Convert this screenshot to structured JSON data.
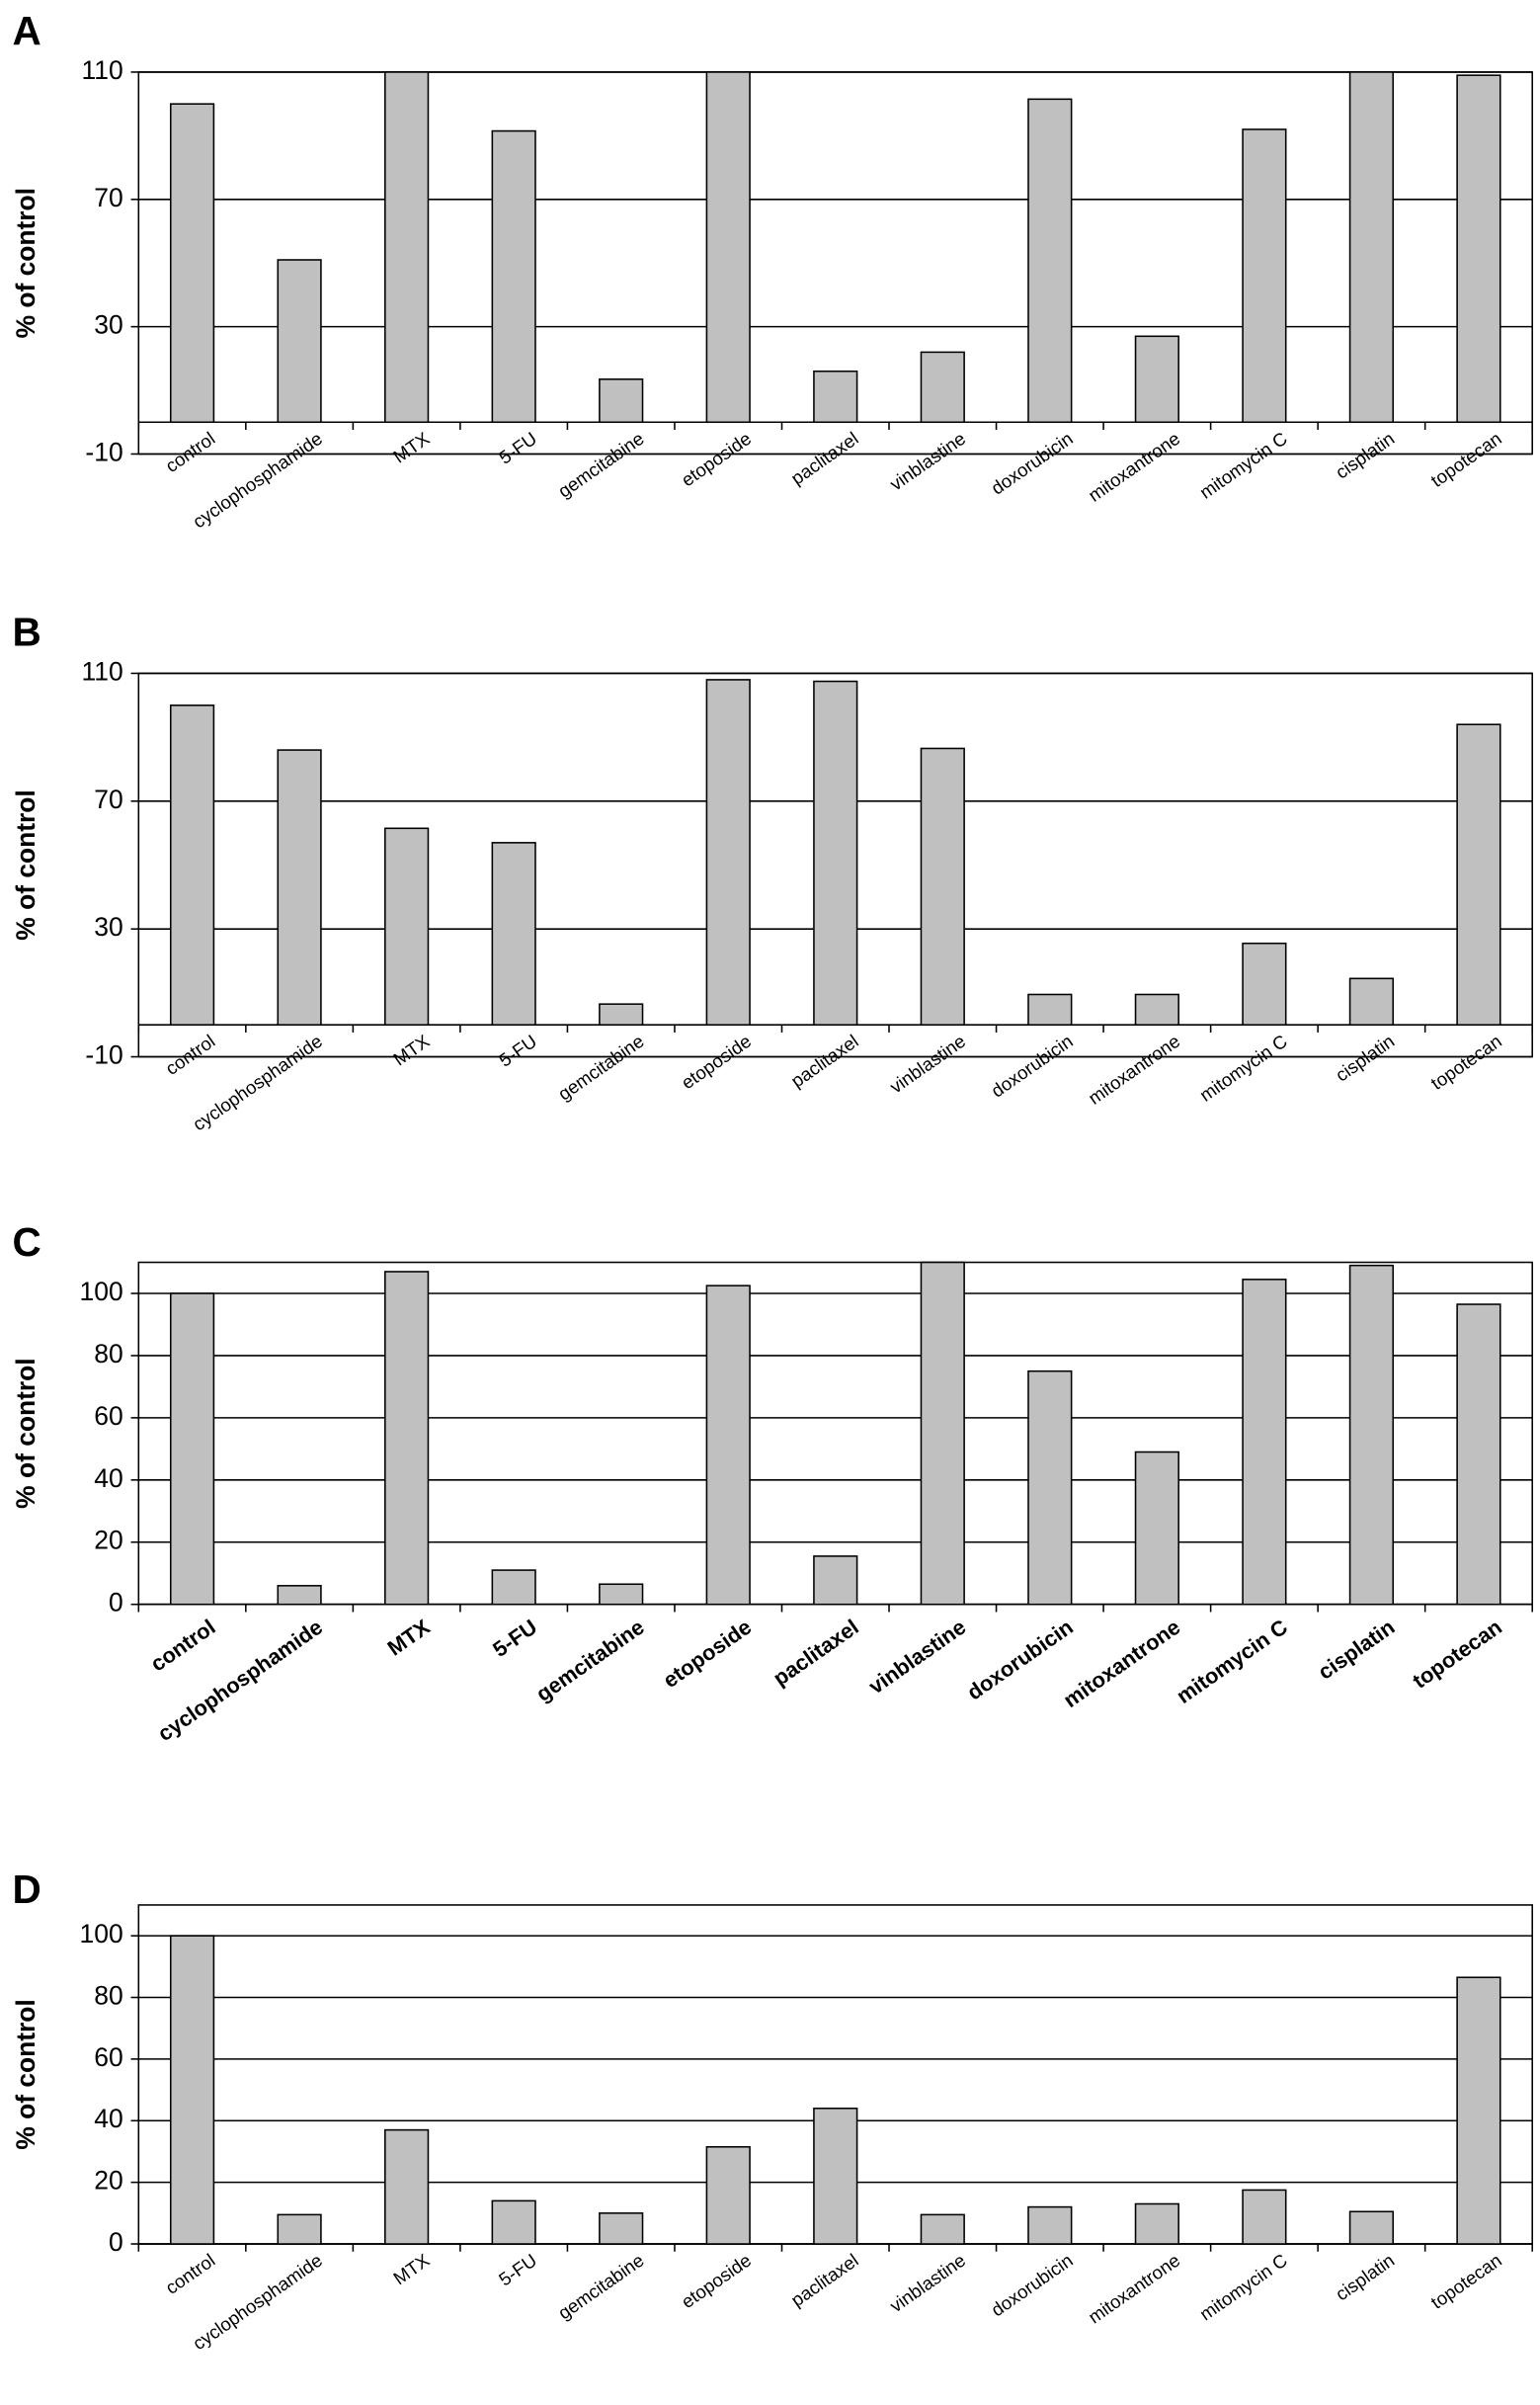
{
  "chart_data": [
    {
      "type": "bar",
      "label": "A",
      "y_label": "% of control",
      "categories": [
        "control",
        "cyclophosphamide",
        "MTX",
        "5-FU",
        "gemcitabine",
        "etoposide",
        "paclitaxel",
        "vinblastine",
        "doxorubicin",
        "mitoxantrone",
        "mitomycin C",
        "cisplatin",
        "topotecan"
      ],
      "values": [
        100,
        51,
        110,
        91.5,
        13.5,
        110,
        16,
        22,
        101.5,
        27,
        92,
        110,
        109
      ],
      "color": "#c0c0c0",
      "ylim": [
        -10,
        110
      ],
      "yticks": [
        -10,
        30,
        70,
        110
      ],
      "grid": true
    },
    {
      "type": "bar",
      "label": "B",
      "y_label": "% of control",
      "categories": [
        "control",
        "cyclophosphamide",
        "MTX",
        "5-FU",
        "gemcitabine",
        "etoposide",
        "paclitaxel",
        "vinblastine",
        "doxorubicin",
        "mitoxantrone",
        "mitomycin C",
        "cisplatin",
        "topotecan"
      ],
      "values": [
        100,
        86,
        61.5,
        57,
        6.5,
        108,
        107.5,
        86.5,
        9.5,
        9.5,
        25.5,
        14.5,
        94
      ],
      "color": "#c0c0c0",
      "ylim": [
        -10,
        110
      ],
      "yticks": [
        -10,
        30,
        70,
        110
      ],
      "grid": true
    },
    {
      "type": "bar",
      "label": "C",
      "y_label": "% of control",
      "categories": [
        "control",
        "cyclophosphamide",
        "MTX",
        "5-FU",
        "gemcitabine",
        "etoposide",
        "paclitaxel",
        "vinblastine",
        "doxorubicin",
        "mitoxantrone",
        "mitomycin C",
        "cisplatin",
        "topotecan"
      ],
      "values": [
        100,
        6,
        107,
        11,
        6.5,
        102.5,
        15.5,
        110,
        75,
        49,
        104.5,
        109,
        96.5
      ],
      "color": "#c0c0c0",
      "ylim": [
        0,
        110
      ],
      "yticks": [
        0,
        20,
        40,
        60,
        80,
        100
      ],
      "grid": true
    },
    {
      "type": "bar",
      "label": "D",
      "y_label": "% of control",
      "categories": [
        "control",
        "cyclophosphamide",
        "MTX",
        "5-FU",
        "gemcitabine",
        "etoposide",
        "paclitaxel",
        "vinblastine",
        "doxorubicin",
        "mitoxantrone",
        "mitomycin C",
        "cisplatin",
        "topotecan"
      ],
      "values": [
        100,
        9.5,
        37,
        14,
        10,
        31.5,
        44,
        9.5,
        12,
        13,
        17.5,
        10.5,
        86.5
      ],
      "color": "#c0c0c0",
      "ylim": [
        0,
        110
      ],
      "yticks": [
        0,
        20,
        40,
        60,
        80,
        100
      ],
      "grid": true
    }
  ]
}
